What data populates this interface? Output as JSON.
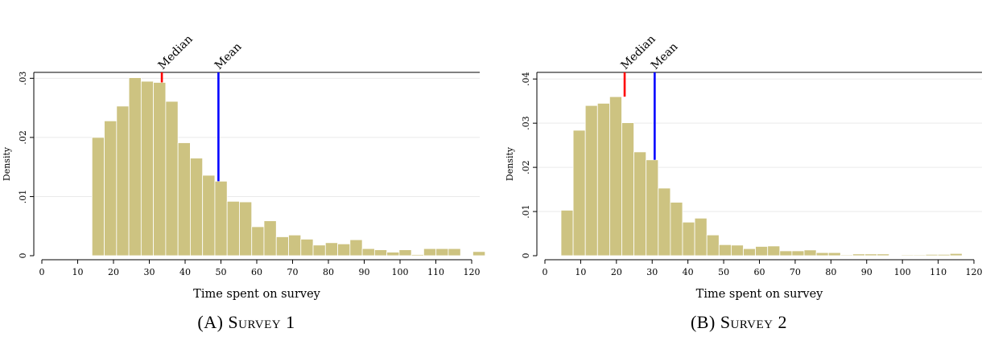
{
  "colors": {
    "bar_fill": "#cdc381",
    "bar_stroke": "#ffffff",
    "median_line": "#ff0000",
    "mean_line": "#0000ff",
    "grid": "#eaeaea"
  },
  "chart_data": [
    {
      "type": "bar",
      "caption_label": "(A)",
      "caption_title": "Survey 1",
      "xlabel": "Time spent on survey",
      "ylabel": "Density",
      "xlim": [
        0,
        120
      ],
      "ylim": [
        0,
        0.031
      ],
      "xticks": [
        0,
        10,
        20,
        30,
        40,
        50,
        60,
        70,
        80,
        90,
        100,
        110,
        120
      ],
      "yticks": [
        0,
        0.01,
        0.02,
        0.03
      ],
      "ytick_labels": [
        "0",
        ".01",
        ".02",
        ".03"
      ],
      "bin_start": 14,
      "bin_width": 3.43,
      "values": [
        0.02,
        0.0228,
        0.0253,
        0.0301,
        0.0295,
        0.0293,
        0.0261,
        0.0191,
        0.0165,
        0.0136,
        0.0126,
        0.0092,
        0.0091,
        0.0049,
        0.0059,
        0.0032,
        0.0035,
        0.0028,
        0.0018,
        0.0022,
        0.002,
        0.0027,
        0.0012,
        0.001,
        0.0006,
        0.001,
        0.0002,
        0.0012,
        0.0012,
        0.0012,
        0.0,
        0.0007
      ],
      "markers": [
        {
          "label": "Median",
          "x": 33.5,
          "top_y": 0.0293
        },
        {
          "label": "Mean",
          "x": 49.3,
          "top_y": 0.0126
        }
      ],
      "grid": true
    },
    {
      "type": "bar",
      "caption_label": "(B)",
      "caption_title": "Survey 2",
      "xlabel": "Time spent on survey",
      "ylabel": "Density",
      "xlim": [
        0,
        120
      ],
      "ylim": [
        0,
        0.0415
      ],
      "xticks": [
        0,
        10,
        20,
        30,
        40,
        50,
        60,
        70,
        80,
        90,
        100,
        110,
        120
      ],
      "yticks": [
        0,
        0.01,
        0.02,
        0.03,
        0.04
      ],
      "ytick_labels": [
        "0",
        ".01",
        ".02",
        ".03",
        ".04"
      ],
      "bin_start": 4.5,
      "bin_width": 3.4,
      "values": [
        0.0103,
        0.0284,
        0.034,
        0.0345,
        0.036,
        0.0301,
        0.0235,
        0.0217,
        0.0153,
        0.0121,
        0.0076,
        0.0085,
        0.0047,
        0.0025,
        0.0024,
        0.0016,
        0.0021,
        0.0022,
        0.0011,
        0.0011,
        0.0013,
        0.0007,
        0.0007,
        0.0002,
        0.0004,
        0.0004,
        0.0004,
        0.0001,
        0.0002,
        0.0002,
        0.0003,
        0.0003,
        0.0005
      ],
      "markers": [
        {
          "label": "Median",
          "x": 22.3,
          "top_y": 0.036
        },
        {
          "label": "Mean",
          "x": 30.7,
          "top_y": 0.0217
        }
      ],
      "grid": true
    }
  ]
}
